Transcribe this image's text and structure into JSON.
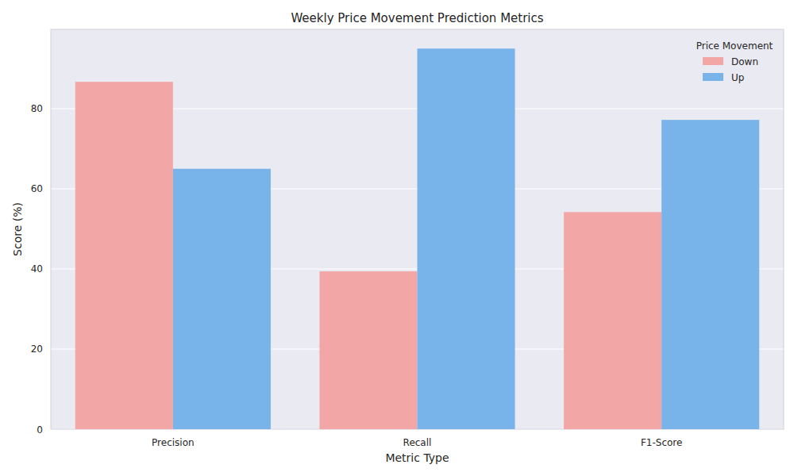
{
  "chart_data": {
    "type": "bar",
    "title": "Weekly Price Movement Prediction Metrics",
    "x_label": "Metric Type",
    "y_label": "Score (%)",
    "categories": [
      "Precision",
      "Recall",
      "F1-Score"
    ],
    "series": [
      {
        "name": "Down",
        "color": "#f2a6a6",
        "values": [
          86.7,
          39.4,
          54.2
        ]
      },
      {
        "name": "Up",
        "color": "#78b3ea",
        "values": [
          65.0,
          95.0,
          77.2
        ]
      }
    ],
    "ylim": [
      0,
      99.8
    ],
    "yticks": [
      0,
      20,
      40,
      60,
      80
    ],
    "grid": true,
    "legend": "upper right",
    "legend_title": "Price Movement"
  }
}
